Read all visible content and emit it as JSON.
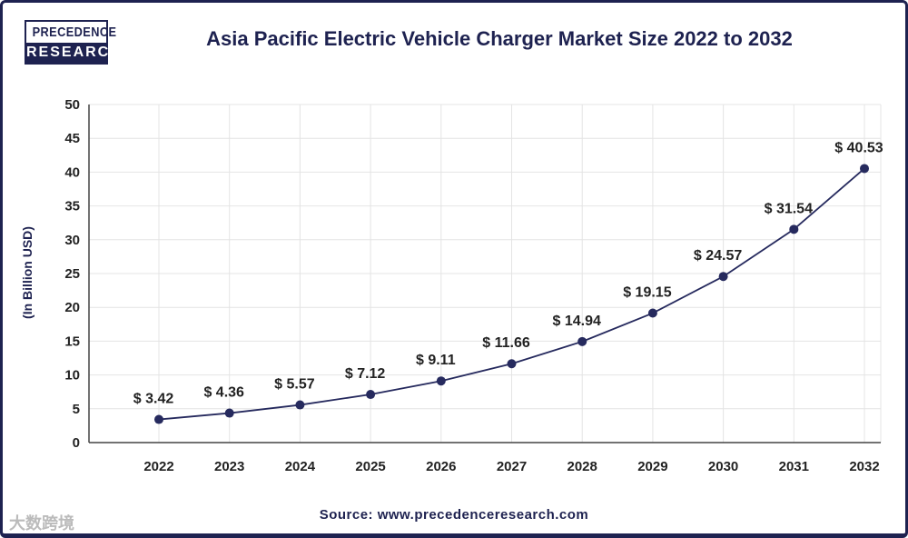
{
  "logo": {
    "line1": "PRECEDENCE",
    "line2": "RESEARCH"
  },
  "watermark": "大数跨境",
  "source": "Source: www.precedenceresearch.com",
  "colors": {
    "navy": "#1e2250",
    "grid": "#e4e4e4",
    "point": "#262a5e"
  },
  "chart_data": {
    "type": "line",
    "title": "Asia Pacific Electric Vehicle Charger Market Size 2022 to 2032",
    "xlabel": "",
    "ylabel": "(In Billion USD)",
    "ylim": [
      0,
      50
    ],
    "yticks": [
      0,
      5,
      10,
      15,
      20,
      25,
      30,
      35,
      40,
      45,
      50
    ],
    "grid": true,
    "categories": [
      "2022",
      "2023",
      "2024",
      "2025",
      "2026",
      "2027",
      "2028",
      "2029",
      "2030",
      "2031",
      "2032"
    ],
    "values": [
      3.42,
      4.36,
      5.57,
      7.12,
      9.11,
      11.66,
      14.94,
      19.15,
      24.57,
      31.54,
      40.53
    ],
    "labels": [
      "$ 3.42",
      "$ 4.36",
      "$ 5.57",
      "$ 7.12",
      "$ 9.11",
      "$ 11.66",
      "$ 14.94",
      "$ 19.15",
      "$ 24.57",
      "$ 31.54",
      "$ 40.53"
    ]
  }
}
